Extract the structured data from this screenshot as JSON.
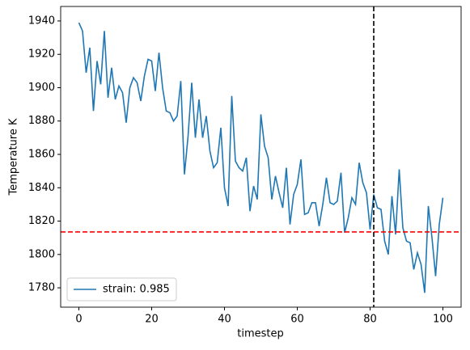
{
  "chart_data": {
    "type": "line",
    "xlabel": "timestep",
    "ylabel": "Temperature K",
    "x": [
      0,
      1,
      2,
      3,
      4,
      5,
      6,
      7,
      8,
      9,
      10,
      11,
      12,
      13,
      14,
      15,
      16,
      17,
      18,
      19,
      20,
      21,
      22,
      23,
      24,
      25,
      26,
      27,
      28,
      29,
      30,
      31,
      32,
      33,
      34,
      35,
      36,
      37,
      38,
      39,
      40,
      41,
      42,
      43,
      44,
      45,
      46,
      47,
      48,
      49,
      50,
      51,
      52,
      53,
      54,
      55,
      56,
      57,
      58,
      59,
      60,
      61,
      62,
      63,
      64,
      65,
      66,
      67,
      68,
      69,
      70,
      71,
      72,
      73,
      74,
      75,
      76,
      77,
      78,
      79,
      80,
      81,
      82,
      83,
      84,
      85,
      86,
      87,
      88,
      89,
      90,
      91,
      92,
      93,
      94,
      95,
      96,
      97,
      98,
      99,
      100
    ],
    "series": [
      {
        "name": "strain: 0.985",
        "color": "#1f77b4",
        "values": [
          1939,
          1934,
          1909,
          1924,
          1886,
          1916,
          1902,
          1934,
          1894,
          1912,
          1893,
          1901,
          1897,
          1879,
          1900,
          1906,
          1903,
          1892,
          1907,
          1917,
          1916,
          1898,
          1921,
          1900,
          1886,
          1885,
          1880,
          1883,
          1904,
          1848,
          1871,
          1903,
          1870,
          1893,
          1870,
          1883,
          1862,
          1852,
          1855,
          1876,
          1840,
          1829,
          1895,
          1856,
          1852,
          1850,
          1858,
          1826,
          1841,
          1833,
          1884,
          1865,
          1858,
          1833,
          1847,
          1837,
          1828,
          1852,
          1818,
          1836,
          1842,
          1857,
          1824,
          1825,
          1831,
          1831,
          1817,
          1830,
          1846,
          1831,
          1830,
          1832,
          1849,
          1813,
          1822,
          1834,
          1830,
          1855,
          1843,
          1837,
          1815,
          1836,
          1828,
          1827,
          1808,
          1800,
          1835,
          1812,
          1851,
          1816,
          1808,
          1807,
          1791,
          1801,
          1794,
          1777,
          1829,
          1810,
          1787,
          1818,
          1834
        ]
      }
    ],
    "reference_lines": [
      {
        "axis": "y",
        "value": 1813.5,
        "color": "#ff0000"
      },
      {
        "axis": "x",
        "value": 81,
        "color": "#000000"
      }
    ],
    "xlim": [
      -5,
      105
    ],
    "ylim": [
      1768.4,
      1948.7
    ],
    "xticks": [
      0,
      20,
      40,
      60,
      80,
      100
    ],
    "yticks": [
      1780,
      1800,
      1820,
      1840,
      1860,
      1880,
      1900,
      1920,
      1940
    ],
    "legend": "lower left",
    "grid": false
  }
}
